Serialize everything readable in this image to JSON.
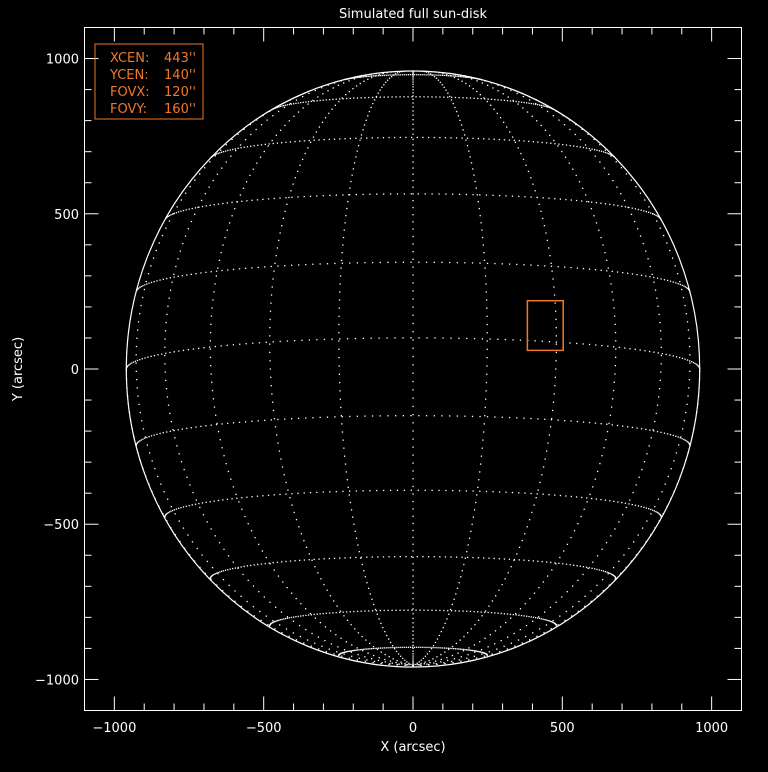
{
  "chart_data": {
    "type": "scatter",
    "title": "Simulated full sun-disk",
    "xlabel": "X (arcsec)",
    "ylabel": "Y (arcsec)",
    "xlim": [
      -1100,
      1100
    ],
    "ylim": [
      -1100,
      1100
    ],
    "xticks": [
      "−1000",
      "−500",
      "0",
      "500",
      "1000"
    ],
    "xtick_values": [
      -1000,
      -500,
      0,
      500,
      1000
    ],
    "yticks": [
      "−1000",
      "−500",
      "0",
      "500",
      "1000"
    ],
    "ytick_values": [
      -1000,
      -500,
      0,
      500,
      1000
    ],
    "solar_radius_arcsec": 960,
    "grid": "heliographic lat/lon dotted grid",
    "fov_box": {
      "xcen": 443,
      "ycen": 140,
      "fovx": 120,
      "fovy": 160
    },
    "info_box": [
      {
        "label": "XCEN:",
        "value": "443''"
      },
      {
        "label": "YCEN:",
        "value": "140''"
      },
      {
        "label": "FOVX:",
        "value": "120''"
      },
      {
        "label": "FOVY:",
        "value": "160''"
      }
    ],
    "colors": {
      "axes": "#ffffff",
      "grid": "#ffffff",
      "fov_box": "#f0782a",
      "background": "#000000"
    }
  }
}
